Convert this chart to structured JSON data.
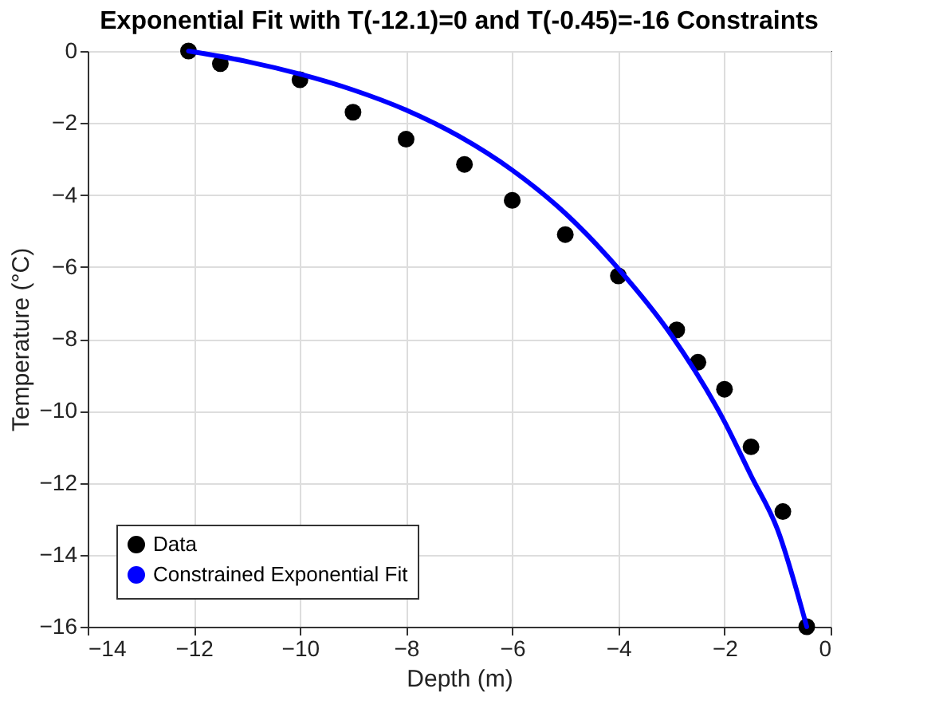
{
  "chart_data": {
    "type": "scatter",
    "title": "Exponential Fit with T(-12.1)=0 and T(-0.45)=-16 Constraints",
    "xlabel": "Depth (m)",
    "ylabel": "Temperature (°C)",
    "xlim": [
      -14,
      0
    ],
    "xticks": [
      -14,
      -12,
      -10,
      -8,
      -6,
      -4,
      -2,
      0
    ],
    "ylim": [
      -16,
      0
    ],
    "yticks": [
      -16,
      -14,
      -12,
      -10,
      -8,
      -6,
      -4,
      -2,
      0
    ],
    "grid": true,
    "legend": "bottom left",
    "series": [
      {
        "name": "Data",
        "marker": "circle",
        "color": "#000000",
        "x": [
          -12.1,
          -11.5,
          -10,
          -9,
          -8,
          -6.9,
          -6,
          -5,
          -4,
          -2.9,
          -2.5,
          -2,
          -1.5,
          -0.9,
          -0.45
        ],
        "values": [
          0,
          -0.35,
          -0.8,
          -1.7,
          -2.45,
          -3.15,
          -4.15,
          -5.1,
          -6.25,
          -7.75,
          -8.65,
          -9.4,
          -11,
          -12.8,
          -16
        ]
      },
      {
        "name": "Constrained Exponential Fit",
        "type": "line",
        "line_style": "solid",
        "color": "#0000ff",
        "x": [
          -12.1,
          -11,
          -10,
          -9,
          -8,
          -7,
          -6,
          -5,
          -4,
          -3,
          -2,
          -1.5,
          -1,
          -0.45
        ],
        "values": [
          0,
          -0.29,
          -0.64,
          -1.08,
          -1.64,
          -2.37,
          -3.31,
          -4.51,
          -6.05,
          -7.9,
          -10.3,
          -11.8,
          -13.3,
          -16
        ]
      }
    ]
  }
}
